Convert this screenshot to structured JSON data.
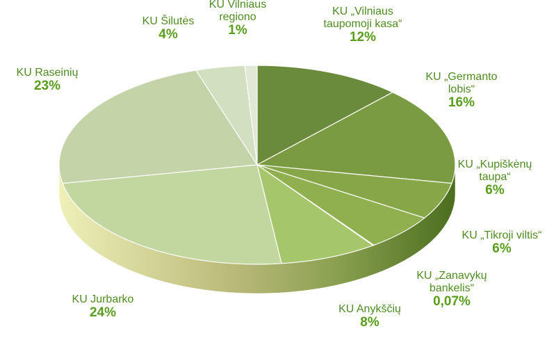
{
  "chart_data": {
    "type": "pie",
    "categories": [
      "KU „Vilniaus taupomoji kasa“",
      "KU „Germanto lobis“",
      "KU „Kupiškėnų taupa“",
      "KU „Tikroji viltis“",
      "KU „Zanavykų bankelis“",
      "KU Anykščių",
      "KU Jurbarko",
      "KU Raseinių",
      "KU Šilutės",
      "KU Vilniaus regiono"
    ],
    "values": [
      12,
      16,
      6,
      6,
      0.07,
      8,
      24,
      23,
      4,
      1
    ],
    "value_labels": [
      "12%",
      "16%",
      "6%",
      "6%",
      "0,07%",
      "8%",
      "24%",
      "23%",
      "4%",
      "1%"
    ],
    "colors": [
      "#6a8a3c",
      "#7b9b42",
      "#86a648",
      "#90b050",
      "#98b858",
      "#a6c66c",
      "#c2d6a0",
      "#c4d3a8",
      "#d3dfc1",
      "#e1e9d6"
    ]
  }
}
